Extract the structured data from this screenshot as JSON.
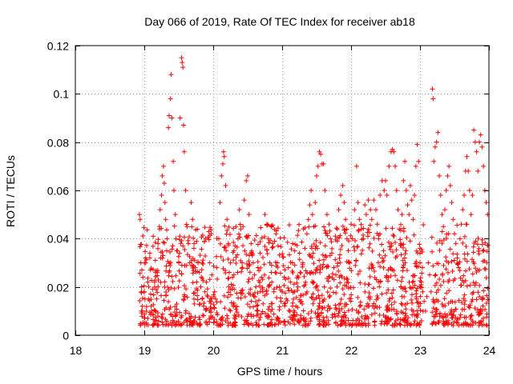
{
  "chart_data": {
    "type": "scatter",
    "title": "Day 066 of 2019, Rate Of TEC Index for receiver ab18",
    "xlabel": "GPS time / hours",
    "ylabel": "ROTI / TECUs",
    "xlim": [
      18,
      24
    ],
    "ylim": [
      0,
      0.12
    ],
    "x_ticks": [
      18,
      19,
      20,
      21,
      22,
      23,
      24
    ],
    "x_tick_labels": [
      "18",
      "19",
      "20",
      "21",
      "22",
      "23",
      "24"
    ],
    "y_ticks": [
      0,
      0.02,
      0.04,
      0.06,
      0.08,
      0.1,
      0.12
    ],
    "y_tick_labels": [
      "0",
      "0.02",
      "0.04",
      "0.06",
      "0.08",
      "0.1",
      "0.12"
    ],
    "grid": true,
    "marker": "plus",
    "series": [
      {
        "name": "ROTI",
        "color": "#ff0000",
        "points": [
          [
            18.93,
            0.05
          ],
          [
            18.94,
            0.048
          ],
          [
            18.95,
            0.03
          ],
          [
            18.96,
            0.02
          ],
          [
            18.97,
            0.012
          ],
          [
            18.98,
            0.024
          ],
          [
            19.0,
            0.018
          ],
          [
            19.02,
            0.03
          ],
          [
            19.03,
            0.01
          ],
          [
            19.05,
            0.022
          ],
          [
            19.06,
            0.015
          ],
          [
            19.08,
            0.034
          ],
          [
            19.09,
            0.027
          ],
          [
            19.1,
            0.012
          ],
          [
            19.12,
            0.019
          ],
          [
            19.13,
            0.041
          ],
          [
            19.15,
            0.022
          ],
          [
            19.16,
            0.031
          ],
          [
            19.18,
            0.015
          ],
          [
            19.19,
            0.026
          ],
          [
            19.2,
            0.038
          ],
          [
            19.22,
            0.044
          ],
          [
            19.23,
            0.052
          ],
          [
            19.25,
            0.058
          ],
          [
            19.26,
            0.066
          ],
          [
            19.28,
            0.07
          ],
          [
            19.29,
            0.063
          ],
          [
            19.3,
            0.055
          ],
          [
            19.31,
            0.048
          ],
          [
            19.33,
            0.04
          ],
          [
            19.35,
            0.086
          ],
          [
            19.36,
            0.091
          ],
          [
            19.38,
            0.098
          ],
          [
            19.39,
            0.108
          ],
          [
            19.4,
            0.09
          ],
          [
            19.42,
            0.072
          ],
          [
            19.43,
            0.06
          ],
          [
            19.45,
            0.05
          ],
          [
            19.46,
            0.04
          ],
          [
            19.48,
            0.035
          ],
          [
            19.5,
            0.03
          ],
          [
            19.52,
            0.09
          ],
          [
            19.54,
            0.115
          ],
          [
            19.55,
            0.113
          ],
          [
            19.56,
            0.111
          ],
          [
            19.57,
            0.087
          ],
          [
            19.58,
            0.076
          ],
          [
            19.6,
            0.06
          ],
          [
            19.62,
            0.045
          ],
          [
            19.64,
            0.038
          ],
          [
            19.66,
            0.03
          ],
          [
            19.68,
            0.055
          ],
          [
            19.7,
            0.048
          ],
          [
            19.72,
            0.036
          ],
          [
            19.74,
            0.028
          ],
          [
            19.76,
            0.022
          ],
          [
            19.78,
            0.03
          ],
          [
            19.8,
            0.026
          ],
          [
            19.82,
            0.02
          ],
          [
            19.84,
            0.015
          ],
          [
            19.86,
            0.012
          ],
          [
            19.88,
            0.018
          ],
          [
            19.9,
            0.022
          ],
          [
            19.92,
            0.016
          ],
          [
            19.95,
            0.03
          ],
          [
            19.98,
            0.025
          ],
          [
            20.02,
            0.018
          ],
          [
            20.05,
            0.028
          ],
          [
            20.08,
            0.04
          ],
          [
            20.1,
            0.055
          ],
          [
            20.12,
            0.066
          ],
          [
            20.14,
            0.071
          ],
          [
            20.15,
            0.076
          ],
          [
            20.16,
            0.074
          ],
          [
            20.18,
            0.062
          ],
          [
            20.2,
            0.048
          ],
          [
            20.22,
            0.038
          ],
          [
            20.25,
            0.03
          ],
          [
            20.28,
            0.024
          ],
          [
            20.3,
            0.035
          ],
          [
            20.33,
            0.045
          ],
          [
            20.36,
            0.04
          ],
          [
            20.38,
            0.052
          ],
          [
            20.4,
            0.044
          ],
          [
            20.42,
            0.03
          ],
          [
            20.45,
            0.056
          ],
          [
            20.48,
            0.064
          ],
          [
            20.5,
            0.066
          ],
          [
            20.52,
            0.05
          ],
          [
            20.55,
            0.038
          ],
          [
            20.58,
            0.03
          ],
          [
            20.6,
            0.025
          ],
          [
            20.62,
            0.02
          ],
          [
            20.65,
            0.028
          ],
          [
            20.68,
            0.034
          ],
          [
            20.7,
            0.024
          ],
          [
            20.72,
            0.018
          ],
          [
            20.75,
            0.05
          ],
          [
            20.78,
            0.046
          ],
          [
            20.8,
            0.04
          ],
          [
            20.82,
            0.03
          ],
          [
            20.85,
            0.022
          ],
          [
            20.88,
            0.018
          ],
          [
            20.9,
            0.026
          ],
          [
            20.93,
            0.03
          ],
          [
            20.96,
            0.02
          ],
          [
            21.0,
            0.018
          ],
          [
            21.03,
            0.024
          ],
          [
            21.06,
            0.015
          ],
          [
            21.09,
            0.028
          ],
          [
            21.12,
            0.022
          ],
          [
            21.15,
            0.03
          ],
          [
            21.18,
            0.018
          ],
          [
            21.2,
            0.012
          ],
          [
            21.23,
            0.02
          ],
          [
            21.26,
            0.026
          ],
          [
            21.3,
            0.03
          ],
          [
            21.33,
            0.036
          ],
          [
            21.36,
            0.042
          ],
          [
            21.38,
            0.048
          ],
          [
            21.4,
            0.054
          ],
          [
            21.42,
            0.06
          ],
          [
            21.44,
            0.05
          ],
          [
            21.46,
            0.045
          ],
          [
            21.48,
            0.055
          ],
          [
            21.5,
            0.066
          ],
          [
            21.52,
            0.07
          ],
          [
            21.54,
            0.076
          ],
          [
            21.56,
            0.075
          ],
          [
            21.58,
            0.071
          ],
          [
            21.6,
            0.071
          ],
          [
            21.62,
            0.06
          ],
          [
            21.65,
            0.05
          ],
          [
            21.68,
            0.046
          ],
          [
            21.7,
            0.04
          ],
          [
            21.72,
            0.034
          ],
          [
            21.75,
            0.028
          ],
          [
            21.78,
            0.025
          ],
          [
            21.8,
            0.044
          ],
          [
            21.82,
            0.052
          ],
          [
            21.85,
            0.058
          ],
          [
            21.88,
            0.062
          ],
          [
            21.9,
            0.055
          ],
          [
            21.92,
            0.048
          ],
          [
            21.94,
            0.04
          ],
          [
            21.96,
            0.035
          ],
          [
            21.98,
            0.03
          ],
          [
            22.0,
            0.046
          ],
          [
            22.02,
            0.04
          ],
          [
            22.05,
            0.052
          ],
          [
            22.08,
            0.07
          ],
          [
            22.1,
            0.055
          ],
          [
            22.12,
            0.048
          ],
          [
            22.15,
            0.044
          ],
          [
            22.18,
            0.04
          ],
          [
            22.2,
            0.054
          ],
          [
            22.22,
            0.05
          ],
          [
            22.25,
            0.056
          ],
          [
            22.28,
            0.052
          ],
          [
            22.3,
            0.048
          ],
          [
            22.33,
            0.056
          ],
          [
            22.36,
            0.052
          ],
          [
            22.38,
            0.046
          ],
          [
            22.4,
            0.04
          ],
          [
            22.42,
            0.058
          ],
          [
            22.45,
            0.064
          ],
          [
            22.48,
            0.06
          ],
          [
            22.5,
            0.064
          ],
          [
            22.52,
            0.058
          ],
          [
            22.55,
            0.07
          ],
          [
            22.58,
            0.076
          ],
          [
            22.6,
            0.077
          ],
          [
            22.62,
            0.076
          ],
          [
            22.64,
            0.07
          ],
          [
            22.66,
            0.06
          ],
          [
            22.68,
            0.052
          ],
          [
            22.7,
            0.044
          ],
          [
            22.72,
            0.038
          ],
          [
            22.74,
            0.05
          ],
          [
            22.76,
            0.064
          ],
          [
            22.78,
            0.072
          ],
          [
            22.8,
            0.06
          ],
          [
            22.82,
            0.054
          ],
          [
            22.84,
            0.05
          ],
          [
            22.86,
            0.062
          ],
          [
            22.88,
            0.056
          ],
          [
            22.9,
            0.048
          ],
          [
            22.92,
            0.058
          ],
          [
            22.94,
            0.07
          ],
          [
            22.96,
            0.079
          ],
          [
            22.98,
            0.072
          ],
          [
            23.0,
            0.03
          ],
          [
            23.02,
            0.022
          ],
          [
            23.04,
            0.018
          ],
          [
            23.06,
            0.014
          ],
          [
            23.08,
            0.01
          ],
          [
            23.1,
            0.016
          ],
          [
            23.12,
            0.03
          ],
          [
            23.14,
            0.025
          ],
          [
            23.16,
            0.018
          ],
          [
            23.18,
            0.102
          ],
          [
            23.19,
            0.098
          ],
          [
            23.2,
            0.072
          ],
          [
            23.22,
            0.078
          ],
          [
            23.24,
            0.08
          ],
          [
            23.26,
            0.084
          ],
          [
            23.28,
            0.066
          ],
          [
            23.3,
            0.058
          ],
          [
            23.32,
            0.05
          ],
          [
            23.34,
            0.045
          ],
          [
            23.36,
            0.052
          ],
          [
            23.38,
            0.06
          ],
          [
            23.4,
            0.066
          ],
          [
            23.42,
            0.07
          ],
          [
            23.44,
            0.062
          ],
          [
            23.46,
            0.055
          ],
          [
            23.48,
            0.048
          ],
          [
            23.5,
            0.042
          ],
          [
            23.52,
            0.038
          ],
          [
            23.54,
            0.032
          ],
          [
            23.56,
            0.028
          ],
          [
            23.58,
            0.04
          ],
          [
            23.6,
            0.046
          ],
          [
            23.62,
            0.052
          ],
          [
            23.64,
            0.058
          ],
          [
            23.66,
            0.068
          ],
          [
            23.68,
            0.074
          ],
          [
            23.7,
            0.068
          ],
          [
            23.72,
            0.06
          ],
          [
            23.74,
            0.05
          ],
          [
            23.76,
            0.058
          ],
          [
            23.78,
            0.085
          ],
          [
            23.8,
            0.08
          ],
          [
            23.82,
            0.076
          ],
          [
            23.84,
            0.068
          ],
          [
            23.86,
            0.08
          ],
          [
            23.88,
            0.083
          ],
          [
            23.9,
            0.078
          ],
          [
            23.92,
            0.07
          ],
          [
            23.94,
            0.06
          ],
          [
            23.96,
            0.055
          ],
          [
            23.98,
            0.05
          ]
        ]
      }
    ]
  }
}
